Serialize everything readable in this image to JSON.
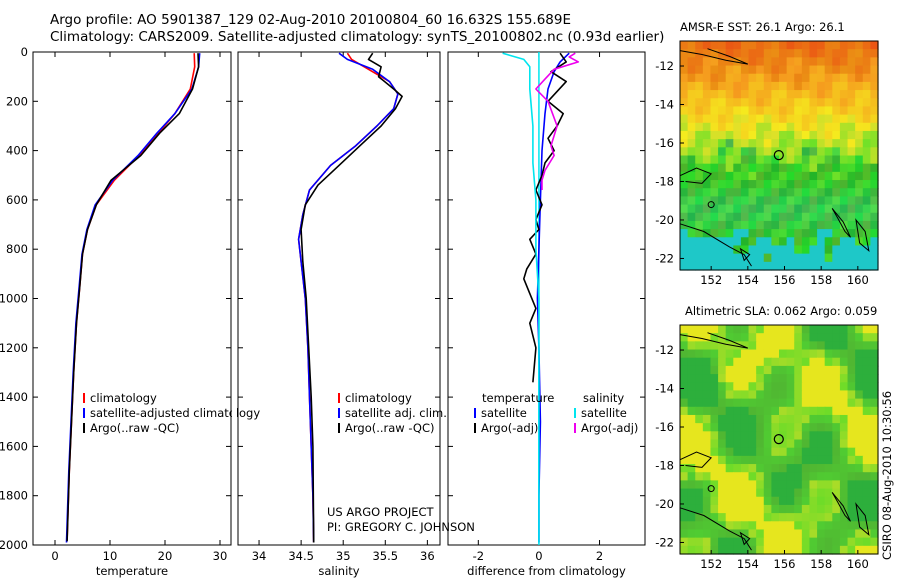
{
  "header": {
    "line1": "Argo profile: AO 5901387_129 02-Aug-2010 20100804_60 16.632S 155.689E",
    "line2": "Climatology: CARS2009. Satellite-adjusted climatology: synTS_20100802.nc (0.93d earlier)"
  },
  "credit": {
    "line1": "US ARGO PROJECT",
    "line2": "PI: GREGORY C. JOHNSON"
  },
  "side_label": "CSIRO 08-Aug-2010 10:30:56",
  "colors": {
    "red": "#ff0000",
    "blue": "#0000ff",
    "black": "#000000",
    "cyan": "#00e5ee",
    "magenta": "#ee00ee"
  },
  "chart_data": [
    {
      "type": "line",
      "name": "temperature-profile",
      "xlabel": "temperature",
      "ylabel": "",
      "xlim": [
        -4,
        32
      ],
      "ylim": [
        2000,
        0
      ],
      "xticks": [
        0,
        10,
        20,
        30
      ],
      "yticks": [
        0,
        200,
        400,
        600,
        800,
        1000,
        1200,
        1400,
        1600,
        1800,
        2000
      ],
      "legend": [
        "climatology",
        "satellite-adjusted climatology",
        "Argo(..raw -QC)"
      ],
      "series": [
        {
          "name": "climatology",
          "color": "red",
          "x": [
            25.3,
            25.4,
            24.6,
            21.8,
            18.8,
            15.3,
            10.8,
            7.5,
            5.9,
            5.0,
            4.5,
            3.9,
            3.4,
            3.0,
            2.6,
            2.2
          ],
          "y": [
            5,
            60,
            150,
            250,
            330,
            420,
            520,
            620,
            720,
            820,
            950,
            1100,
            1300,
            1500,
            1700,
            1980
          ]
        },
        {
          "name": "satellite-adjusted",
          "color": "blue",
          "x": [
            26.3,
            26.1,
            24.9,
            21.8,
            18.5,
            15.1,
            10.5,
            7.3,
            5.8,
            4.9,
            4.4,
            3.8,
            3.3,
            2.9,
            2.5,
            2.1
          ],
          "y": [
            5,
            60,
            150,
            250,
            330,
            420,
            520,
            620,
            720,
            820,
            950,
            1100,
            1300,
            1500,
            1700,
            1990
          ]
        },
        {
          "name": "Argo",
          "color": "black",
          "x": [
            26.0,
            26.1,
            25.0,
            22.6,
            19.0,
            15.6,
            10.2,
            7.5,
            5.9,
            5.0,
            4.5,
            3.9,
            3.4,
            3.0,
            2.6,
            2.2
          ],
          "y": [
            5,
            60,
            150,
            250,
            330,
            420,
            520,
            620,
            720,
            820,
            950,
            1100,
            1300,
            1500,
            1700,
            1985
          ]
        }
      ]
    },
    {
      "type": "line",
      "name": "salinity-profile",
      "xlabel": "salinity",
      "xlim": [
        33.75,
        36.15
      ],
      "ylim": [
        2000,
        0
      ],
      "xticks": [
        34,
        34.5,
        35,
        35.5,
        36
      ],
      "legend": [
        "climatology",
        "satellite adj. clim.",
        "Argo(..raw -QC)"
      ],
      "series": [
        {
          "name": "climatology",
          "color": "red",
          "x": [
            35.05,
            35.1,
            35.3,
            35.55,
            35.65,
            35.6,
            35.4,
            35.15,
            34.85,
            34.6,
            34.52,
            34.47,
            34.5,
            34.55,
            34.58,
            34.6,
            34.62,
            34.64,
            34.65
          ],
          "y": [
            5,
            30,
            70,
            120,
            170,
            230,
            300,
            380,
            460,
            560,
            660,
            760,
            850,
            1000,
            1200,
            1400,
            1600,
            1800,
            1990
          ]
        },
        {
          "name": "satellite-adjusted",
          "color": "blue",
          "x": [
            34.95,
            35.05,
            35.35,
            35.55,
            35.65,
            35.6,
            35.4,
            35.15,
            34.85,
            34.6,
            34.52,
            34.47,
            34.5,
            34.55,
            34.58,
            34.6,
            34.62,
            34.64,
            34.65
          ],
          "y": [
            5,
            30,
            70,
            120,
            170,
            230,
            300,
            380,
            460,
            560,
            660,
            760,
            850,
            1000,
            1200,
            1400,
            1600,
            1800,
            1990
          ]
        },
        {
          "name": "Argo",
          "color": "black",
          "x": [
            35.35,
            35.3,
            35.45,
            35.42,
            35.6,
            35.7,
            35.62,
            35.45,
            35.2,
            34.95,
            34.7,
            34.55,
            34.5,
            34.52,
            34.56,
            34.59,
            34.62,
            34.64,
            34.65
          ],
          "y": [
            5,
            30,
            60,
            100,
            150,
            180,
            230,
            300,
            380,
            460,
            540,
            620,
            720,
            850,
            1000,
            1200,
            1400,
            1600,
            1990
          ]
        }
      ]
    },
    {
      "type": "line",
      "name": "difference-profile",
      "xlabel": "difference from climatology",
      "xlim": [
        -3,
        3.5
      ],
      "ylim": [
        2000,
        0
      ],
      "xticks": [
        -2,
        0,
        2
      ],
      "legend": [
        "temperature",
        "satellite",
        "Argo(-adj)",
        "salinity",
        "satellite",
        "Argo(-adj)"
      ],
      "series": [
        {
          "name": "temperature-satellite",
          "color": "blue",
          "x": [
            1.0,
            0.7,
            0.5,
            0.3,
            0.2,
            0.1,
            0.05,
            0,
            -0.05,
            0,
            0.05,
            0,
            0
          ],
          "y": [
            5,
            40,
            80,
            150,
            250,
            400,
            600,
            800,
            1000,
            1200,
            1500,
            1800,
            1990
          ]
        },
        {
          "name": "temperature-argo",
          "color": "black",
          "x": [
            0.7,
            0.9,
            0.4,
            0.9,
            0.6,
            0.3,
            0.8,
            0.6,
            0.3,
            0.5,
            0.2,
            0.1,
            -0.1,
            0.1,
            -0.1,
            0.0,
            -0.3,
            -0.1,
            -0.4,
            -0.5,
            -0.3,
            -0.1,
            -0.3,
            -0.1,
            -0.2
          ],
          "y": [
            5,
            40,
            80,
            120,
            160,
            200,
            250,
            300,
            350,
            400,
            450,
            500,
            560,
            620,
            680,
            720,
            760,
            820,
            880,
            920,
            980,
            1040,
            1100,
            1200,
            1340
          ]
        },
        {
          "name": "salinity-satellite",
          "color": "cyan",
          "x": [
            -1.2,
            -0.5,
            -0.3,
            -0.3,
            -0.2,
            -0.2,
            -0.1,
            -0.1,
            0,
            0,
            0
          ],
          "y": [
            5,
            30,
            60,
            150,
            300,
            450,
            600,
            800,
            1000,
            1500,
            1990
          ]
        },
        {
          "name": "salinity-argo",
          "color": "magenta",
          "x": [
            1.2,
            1.0,
            1.3,
            0.5,
            0.2,
            -0.1,
            0.3,
            0.6,
            0.4,
            0.5,
            0.2,
            0.1,
            0.1
          ],
          "y": [
            5,
            20,
            40,
            70,
            110,
            150,
            200,
            300,
            380,
            420,
            480,
            520,
            560
          ]
        }
      ]
    },
    {
      "type": "heatmap",
      "name": "sst-map",
      "title": "AMSR-E SST: 26.1 Argo: 26.1",
      "xticks": [
        152,
        154,
        156,
        158,
        160
      ],
      "yticks": [
        -12,
        -14,
        -16,
        -18,
        -20,
        -22
      ],
      "xlim": [
        150.3,
        161.1
      ],
      "ylim": [
        -22.6,
        -10.7
      ],
      "argo_position": [
        155.689,
        -16.632
      ]
    },
    {
      "type": "heatmap",
      "name": "sla-map",
      "title": "Altimetric SLA: 0.062 Argo: 0.059",
      "xticks": [
        152,
        154,
        156,
        158,
        160
      ],
      "yticks": [
        -12,
        -14,
        -16,
        -18,
        -20,
        -22
      ],
      "xlim": [
        150.3,
        161.1
      ],
      "ylim": [
        -22.6,
        -10.7
      ],
      "argo_position": [
        155.689,
        -16.632
      ]
    }
  ]
}
